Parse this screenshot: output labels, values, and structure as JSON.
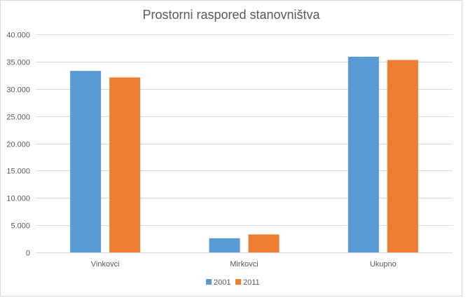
{
  "chart_data": {
    "type": "bar",
    "title": "Prostorni raspored stanovništva",
    "xlabel": "",
    "ylabel": "",
    "categories": [
      "Vinkovci",
      "Mirkovci",
      "Ukupno"
    ],
    "series": [
      {
        "name": "2001",
        "color": "#5b9bd5",
        "values": [
          33300,
          2600,
          35900
        ]
      },
      {
        "name": "2011",
        "color": "#ed7d31",
        "values": [
          32100,
          3300,
          35300
        ]
      }
    ],
    "ylim": [
      0,
      40000
    ],
    "yticks": [
      "0",
      "5.000",
      "10.000",
      "15.000",
      "20.000",
      "25.000",
      "30.000",
      "35.000",
      "40.000"
    ],
    "ytick_values": [
      0,
      5000,
      10000,
      15000,
      20000,
      25000,
      30000,
      35000,
      40000
    ],
    "grid": true,
    "legend_position": "bottom",
    "gridline_color": "#d9d9d9",
    "text_color": "#595959"
  }
}
